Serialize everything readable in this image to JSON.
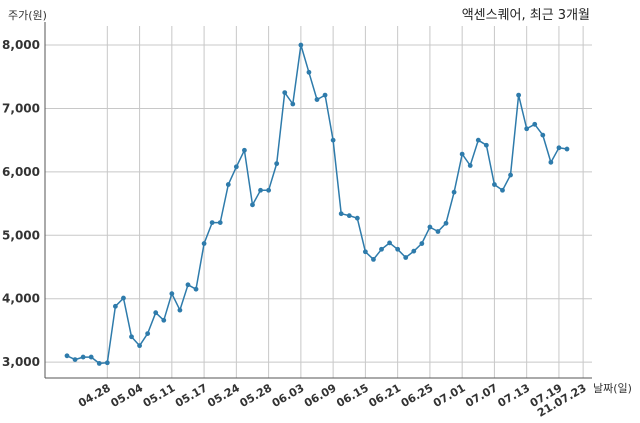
{
  "chart_data": {
    "type": "line",
    "title": "액센스퀘어, 최근 3개월",
    "ylabel": "주가(원)",
    "xlabel": "날짜(일)",
    "ylim": [
      2750,
      8300
    ],
    "yticks": [
      3000,
      4000,
      5000,
      6000,
      7000,
      8000
    ],
    "ytick_labels": [
      "3,000",
      "4,000",
      "5,000",
      "6,000",
      "7,000",
      "8,000"
    ],
    "grid": true,
    "colors": {
      "line": "#2e7bab",
      "grid": "#c8c8c8",
      "axis": "#555555"
    },
    "x_tick_labels": [
      {
        "label": "04.28",
        "index": 5
      },
      {
        "label": "05.04",
        "index": 9
      },
      {
        "label": "05.11",
        "index": 13
      },
      {
        "label": "05.17",
        "index": 17
      },
      {
        "label": "05.24",
        "index": 21
      },
      {
        "label": "05.28",
        "index": 25
      },
      {
        "label": "06.03",
        "index": 29
      },
      {
        "label": "06.09",
        "index": 33
      },
      {
        "label": "06.15",
        "index": 37
      },
      {
        "label": "06.21",
        "index": 41
      },
      {
        "label": "06.25",
        "index": 45
      },
      {
        "label": "07.01",
        "index": 49
      },
      {
        "label": "07.07",
        "index": 53
      },
      {
        "label": "07.13",
        "index": 57
      },
      {
        "label": "07.19",
        "index": 61
      },
      {
        "label": "21.07.23",
        "index": 64
      }
    ],
    "series": [
      {
        "values": [
          3100,
          3040,
          3080,
          3080,
          2980,
          2990,
          3880,
          4010,
          3400,
          3260,
          3450,
          3780,
          3660,
          4080,
          3820,
          4220,
          4150,
          4870,
          5200,
          5200,
          5800,
          6080,
          6340,
          5480,
          5710,
          5710,
          6130,
          7250,
          7070,
          8000,
          7570,
          7140,
          7210,
          6500,
          5340,
          5310,
          5270,
          4740,
          4620,
          4780,
          4880,
          4780,
          4650,
          4750,
          4870,
          5130,
          5060,
          5190,
          5680,
          6280,
          6100,
          6500,
          6420,
          5800,
          5710,
          5950,
          7210,
          6680,
          6750,
          6580,
          6150,
          6380,
          6360
        ]
      }
    ]
  }
}
